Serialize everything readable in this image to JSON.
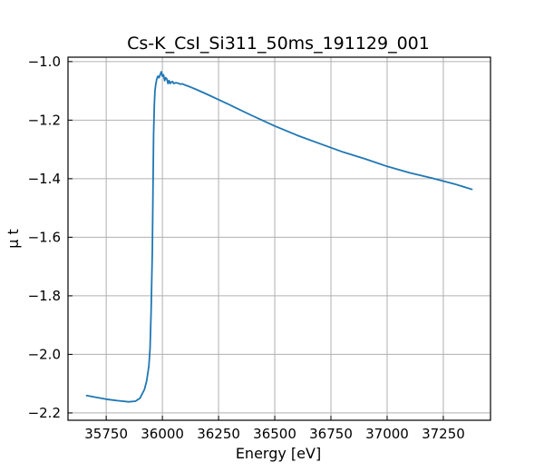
{
  "chart_data": {
    "type": "line",
    "title": "Cs-K_CsI_Si311_50ms_191129_001",
    "xlabel": "Energy [eV]",
    "ylabel": "μ t",
    "xlim": [
      35580,
      37460
    ],
    "ylim": [
      -2.225,
      -0.985
    ],
    "grid": true,
    "xticks": [
      35750,
      36000,
      36250,
      36500,
      36750,
      37000,
      37250
    ],
    "yticks": [
      -1.0,
      -1.2,
      -1.4,
      -1.6,
      -1.8,
      -2.0,
      -2.2
    ],
    "xtick_labels": [
      "35750",
      "36000",
      "36250",
      "36500",
      "36750",
      "37000",
      "37250"
    ],
    "ytick_labels": [
      "−1.0",
      "−1.2",
      "−1.4",
      "−1.6",
      "−1.8",
      "−2.0",
      "−2.2"
    ],
    "series": [
      {
        "color": "#1f77b4",
        "x": [
          35660,
          35700,
          35750,
          35800,
          35850,
          35880,
          35900,
          35920,
          35930,
          35940,
          35945,
          35950,
          35955,
          35958,
          35961,
          35964,
          35967,
          35970,
          35975,
          35980,
          35985,
          35990,
          35995,
          36000,
          36005,
          36010,
          36015,
          36020,
          36025,
          36030,
          36035,
          36040,
          36045,
          36050,
          36060,
          36070,
          36080,
          36090,
          36100,
          36125,
          36150,
          36200,
          36250,
          36300,
          36400,
          36500,
          36600,
          36700,
          36800,
          36900,
          37000,
          37100,
          37200,
          37300,
          37380
        ],
        "y": [
          -2.14,
          -2.146,
          -2.153,
          -2.158,
          -2.162,
          -2.16,
          -2.15,
          -2.12,
          -2.09,
          -2.04,
          -1.98,
          -1.85,
          -1.65,
          -1.45,
          -1.25,
          -1.15,
          -1.1,
          -1.08,
          -1.06,
          -1.05,
          -1.055,
          -1.045,
          -1.035,
          -1.05,
          -1.045,
          -1.065,
          -1.055,
          -1.06,
          -1.075,
          -1.065,
          -1.075,
          -1.07,
          -1.068,
          -1.075,
          -1.072,
          -1.074,
          -1.077,
          -1.076,
          -1.08,
          -1.087,
          -1.095,
          -1.112,
          -1.13,
          -1.148,
          -1.185,
          -1.22,
          -1.252,
          -1.28,
          -1.308,
          -1.332,
          -1.358,
          -1.38,
          -1.398,
          -1.418,
          -1.437
        ]
      }
    ]
  }
}
